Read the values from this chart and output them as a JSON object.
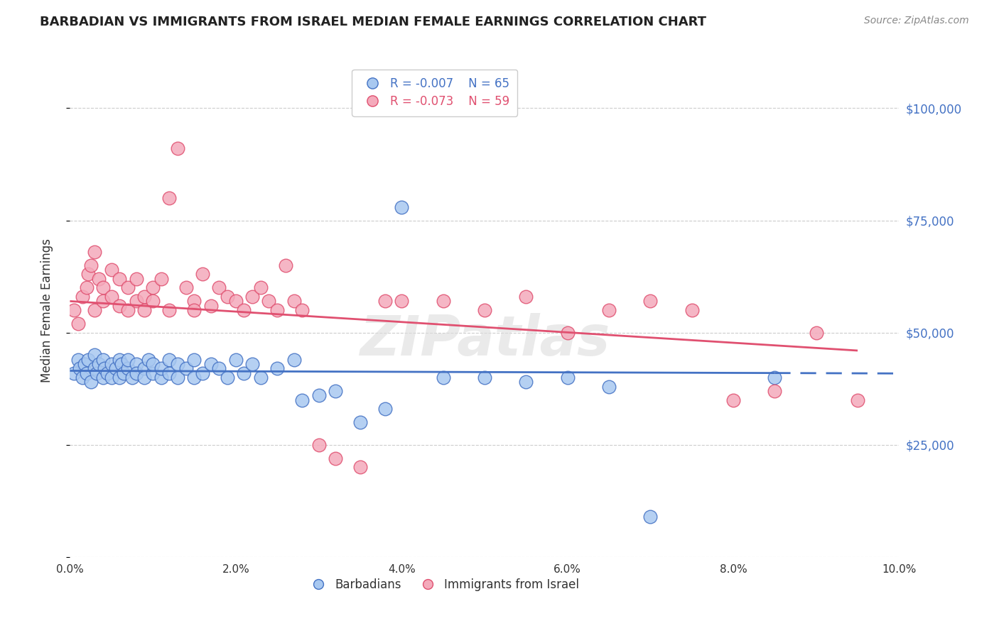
{
  "title": "BARBADIAN VS IMMIGRANTS FROM ISRAEL MEDIAN FEMALE EARNINGS CORRELATION CHART",
  "source": "Source: ZipAtlas.com",
  "ylabel": "Median Female Earnings",
  "watermark": "ZIPatlas",
  "legend_barbadians": "Barbadians",
  "legend_israel": "Immigrants from Israel",
  "R_barbadians": -0.007,
  "N_barbadians": 65,
  "R_israel": -0.073,
  "N_israel": 59,
  "xlim": [
    0.0,
    0.1
  ],
  "ylim": [
    0,
    110000
  ],
  "yticks": [
    0,
    25000,
    50000,
    75000,
    100000
  ],
  "xticks": [
    0.0,
    0.02,
    0.04,
    0.06,
    0.08,
    0.1
  ],
  "color_barbadians": "#A8C8F0",
  "color_israel": "#F4AABB",
  "line_color_barbadians": "#4472C4",
  "line_color_israel": "#E05070",
  "barbadians_x": [
    0.0005,
    0.001,
    0.0012,
    0.0015,
    0.0018,
    0.002,
    0.0022,
    0.0025,
    0.003,
    0.003,
    0.0032,
    0.0035,
    0.004,
    0.004,
    0.0042,
    0.0045,
    0.005,
    0.005,
    0.0055,
    0.006,
    0.006,
    0.0062,
    0.0065,
    0.007,
    0.007,
    0.0075,
    0.008,
    0.008,
    0.009,
    0.009,
    0.0095,
    0.01,
    0.01,
    0.011,
    0.011,
    0.012,
    0.012,
    0.013,
    0.013,
    0.014,
    0.015,
    0.015,
    0.016,
    0.017,
    0.018,
    0.019,
    0.02,
    0.021,
    0.022,
    0.023,
    0.025,
    0.027,
    0.028,
    0.03,
    0.032,
    0.035,
    0.038,
    0.04,
    0.045,
    0.05,
    0.055,
    0.06,
    0.065,
    0.07,
    0.085
  ],
  "barbadians_y": [
    41000,
    44000,
    42000,
    40000,
    43000,
    41000,
    44000,
    39000,
    42000,
    45000,
    41000,
    43000,
    40000,
    44000,
    42000,
    41000,
    40000,
    43000,
    42000,
    44000,
    40000,
    43000,
    41000,
    42000,
    44000,
    40000,
    43000,
    41000,
    42000,
    40000,
    44000,
    41000,
    43000,
    40000,
    42000,
    44000,
    41000,
    43000,
    40000,
    42000,
    44000,
    40000,
    41000,
    43000,
    42000,
    40000,
    44000,
    41000,
    43000,
    40000,
    42000,
    44000,
    35000,
    36000,
    37000,
    30000,
    33000,
    78000,
    40000,
    40000,
    39000,
    40000,
    38000,
    9000,
    40000
  ],
  "israel_x": [
    0.0005,
    0.001,
    0.0015,
    0.002,
    0.0022,
    0.0025,
    0.003,
    0.003,
    0.0035,
    0.004,
    0.004,
    0.005,
    0.005,
    0.006,
    0.006,
    0.007,
    0.007,
    0.008,
    0.008,
    0.009,
    0.009,
    0.01,
    0.01,
    0.011,
    0.012,
    0.012,
    0.013,
    0.014,
    0.015,
    0.015,
    0.016,
    0.017,
    0.018,
    0.019,
    0.02,
    0.021,
    0.022,
    0.023,
    0.024,
    0.025,
    0.026,
    0.027,
    0.028,
    0.03,
    0.032,
    0.035,
    0.038,
    0.04,
    0.045,
    0.05,
    0.055,
    0.06,
    0.065,
    0.07,
    0.075,
    0.08,
    0.085,
    0.09,
    0.095
  ],
  "israel_y": [
    55000,
    52000,
    58000,
    60000,
    63000,
    65000,
    55000,
    68000,
    62000,
    60000,
    57000,
    64000,
    58000,
    56000,
    62000,
    55000,
    60000,
    57000,
    62000,
    58000,
    55000,
    60000,
    57000,
    62000,
    55000,
    80000,
    91000,
    60000,
    57000,
    55000,
    63000,
    56000,
    60000,
    58000,
    57000,
    55000,
    58000,
    60000,
    57000,
    55000,
    65000,
    57000,
    55000,
    25000,
    22000,
    20000,
    57000,
    57000,
    57000,
    55000,
    58000,
    50000,
    55000,
    57000,
    55000,
    35000,
    37000,
    50000,
    35000
  ],
  "line_barb_x0": 0.0,
  "line_barb_y0": 41500,
  "line_barb_x1": 0.085,
  "line_barb_y1": 41000,
  "line_barb_dash_x0": 0.085,
  "line_barb_dash_y0": 41000,
  "line_barb_dash_x1": 0.1,
  "line_barb_dash_y1": 40900,
  "line_israel_x0": 0.0,
  "line_israel_y0": 57000,
  "line_israel_x1": 0.095,
  "line_israel_y1": 46000
}
